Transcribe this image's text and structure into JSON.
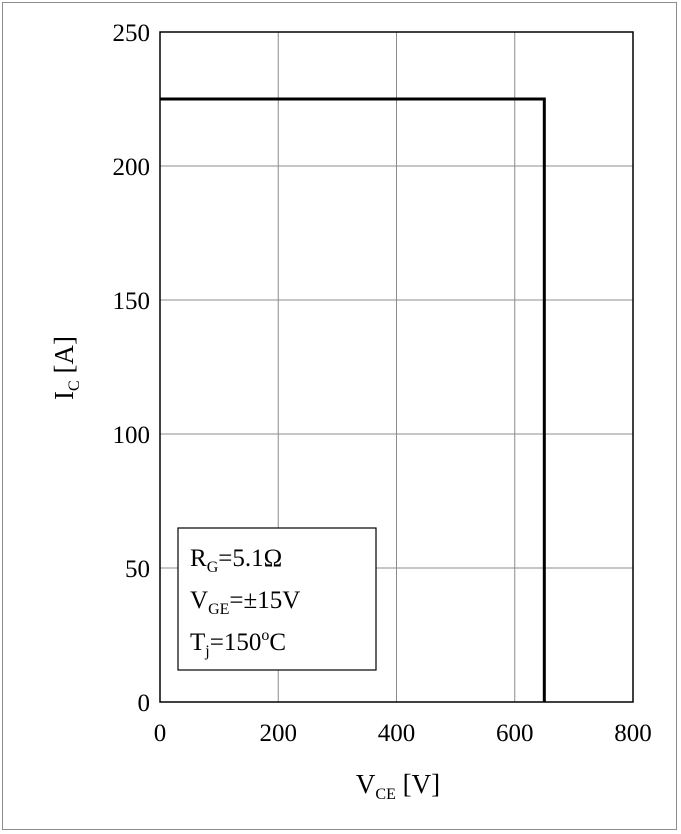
{
  "chart_data": {
    "type": "line",
    "title": "",
    "xlabel": {
      "main": "V",
      "sub": "CE",
      "unit": " [V]"
    },
    "ylabel": {
      "main": "I",
      "sub": "C",
      "unit": " [A]"
    },
    "xlim": [
      0,
      800
    ],
    "ylim": [
      0,
      250
    ],
    "x_ticks": [
      "0",
      "200",
      "400",
      "600",
      "800"
    ],
    "y_ticks": [
      "0",
      "50",
      "100",
      "150",
      "200",
      "250"
    ],
    "grid": true,
    "series": [
      {
        "x": [
          0,
          650,
          650
        ],
        "y": [
          225,
          225,
          0
        ],
        "color": "#000000"
      }
    ],
    "annotation": {
      "lines": [
        {
          "main": "R",
          "sub": "G",
          "rest": "=5.1Ω"
        },
        {
          "main": "V",
          "sub": "GE",
          "rest": "=±15V"
        },
        {
          "main": "T",
          "sub": "j",
          "rest": "=150",
          "sup": "o",
          "tail": "C"
        }
      ]
    }
  }
}
